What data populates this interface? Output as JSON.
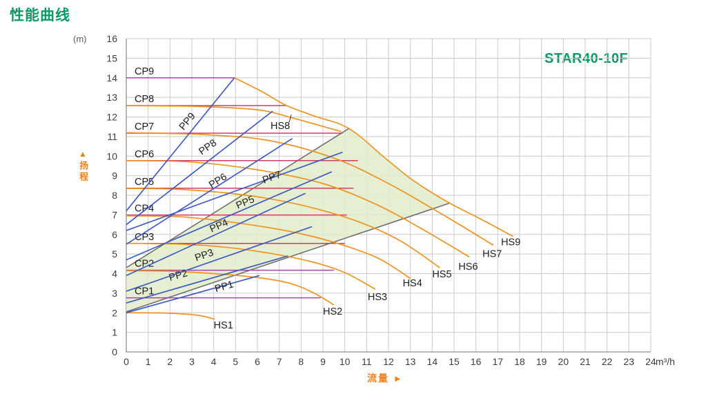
{
  "page": {
    "title": "性能曲线",
    "model": "STAR40-10F"
  },
  "axes": {
    "y_unit": "(m)",
    "ylabel": "扬程",
    "ylabel_arrow": "▲",
    "xlabel": "流量",
    "xlabel_arrow": "►",
    "x_unit": "m³/h"
  },
  "chart_data": {
    "type": "line",
    "title": "性能曲线",
    "model": "STAR40-10F",
    "xlabel": "流量 (m³/h)",
    "ylabel": "扬程 (m)",
    "xlim": [
      0,
      24
    ],
    "ylim": [
      0,
      16
    ],
    "xticks": [
      0,
      1,
      2,
      3,
      4,
      5,
      6,
      7,
      8,
      9,
      10,
      11,
      12,
      13,
      14,
      15,
      16,
      17,
      18,
      19,
      20,
      21,
      22,
      23,
      24
    ],
    "yticks": [
      0,
      1,
      2,
      3,
      4,
      5,
      6,
      7,
      8,
      9,
      10,
      11,
      12,
      13,
      14,
      15,
      16
    ],
    "grid": true,
    "legend": "none",
    "colors": {
      "hs_orange": "#f0921e",
      "pp_blue": "#3d5bc0",
      "cp_crimson": "#d03a66",
      "cp_magenta": "#b13dae",
      "boundary_gray": "#6f6f6f",
      "region_fill": "#e2ecca",
      "grid": "#c9c9c9",
      "axis": "#8f8f8f",
      "tick_text": "#3c3c3c",
      "curve_text": "#1c1c1c",
      "brand_green": "#089a62",
      "axis_orange": "#f0821e"
    },
    "operating_region": {
      "points": [
        [
          0,
          2.05
        ],
        [
          0,
          4.3
        ],
        [
          10.2,
          11.42
        ],
        [
          11.9,
          9.85
        ],
        [
          13.2,
          8.7
        ],
        [
          14.8,
          7.6
        ]
      ]
    },
    "boundary_lines": [
      {
        "name": "lower-limit",
        "from": [
          0,
          2.05
        ],
        "to": [
          14.8,
          7.6
        ]
      },
      {
        "name": "upper-limit",
        "from": [
          0,
          4.3
        ],
        "to": [
          10.2,
          11.42
        ]
      }
    ],
    "cp_lines": [
      {
        "name": "CP1",
        "head_m": 2.76,
        "x_end": 8.9,
        "color": "#b13dae"
      },
      {
        "name": "CP2",
        "head_m": 4.17,
        "x_end": 9.5,
        "color": "#b13dae"
      },
      {
        "name": "CP3",
        "head_m": 5.54,
        "x_end": 10.0,
        "color": "#d03a66"
      },
      {
        "name": "CP4",
        "head_m": 6.99,
        "x_end": 10.1,
        "color": "#d03a66"
      },
      {
        "name": "CP5",
        "head_m": 8.36,
        "x_end": 10.4,
        "color": "#d03a66"
      },
      {
        "name": "CP6",
        "head_m": 9.77,
        "x_end": 10.6,
        "color": "#d03a66"
      },
      {
        "name": "CP7",
        "head_m": 11.17,
        "x_end": 9.9,
        "color": "#d03a66"
      },
      {
        "name": "CP8",
        "head_m": 12.58,
        "x_end": 7.3,
        "color": "#d03a66"
      },
      {
        "name": "CP9",
        "head_m": 14.0,
        "x_end": 4.95,
        "color": "#b13dae"
      }
    ],
    "pp_lines": [
      {
        "name": "PP1",
        "from": [
          0,
          2.0
        ],
        "to": [
          6.1,
          3.9
        ],
        "label": [
          4.1,
          3.05
        ],
        "angle": -16
      },
      {
        "name": "PP2",
        "from": [
          0,
          2.5
        ],
        "to": [
          7.4,
          4.9
        ],
        "label": [
          2.0,
          3.62
        ],
        "angle": -16
      },
      {
        "name": "PP3",
        "from": [
          0,
          3.1
        ],
        "to": [
          8.5,
          6.4
        ],
        "label": [
          3.2,
          4.63
        ],
        "angle": -19
      },
      {
        "name": "PP4",
        "from": [
          0,
          3.9
        ],
        "to": [
          8.2,
          8.1
        ],
        "label": [
          3.9,
          6.1
        ],
        "angle": -24
      },
      {
        "name": "PP5",
        "from": [
          0,
          4.7
        ],
        "to": [
          9.4,
          9.2
        ],
        "label": [
          5.1,
          7.3
        ],
        "angle": -23
      },
      {
        "name": "PP6",
        "from": [
          0,
          5.5
        ],
        "to": [
          7.6,
          10.9
        ],
        "label": [
          3.9,
          8.35
        ],
        "angle": -32
      },
      {
        "name": "PP7",
        "from": [
          0,
          6.2
        ],
        "to": [
          9.9,
          10.2
        ],
        "label": [
          6.3,
          8.6
        ],
        "angle": -20
      },
      {
        "name": "PP8",
        "from": [
          0,
          6.5
        ],
        "to": [
          6.7,
          12.3
        ],
        "label": [
          3.45,
          10.05
        ],
        "angle": -35
      },
      {
        "name": "PP9",
        "from": [
          0,
          7.2
        ],
        "to": [
          4.95,
          14.0
        ],
        "label": [
          2.62,
          11.3
        ],
        "angle": -50
      }
    ],
    "hs_curves": [
      {
        "name": "HS1",
        "label": [
          4.0,
          1.2
        ],
        "points": [
          [
            0,
            2.0
          ],
          [
            1.5,
            1.99
          ],
          [
            2.6,
            1.94
          ],
          [
            3.4,
            1.85
          ],
          [
            4.05,
            1.67
          ]
        ]
      },
      {
        "name": "HS2",
        "label": [
          9.0,
          1.9
        ],
        "points": [
          [
            0,
            4.15
          ],
          [
            2,
            4.12
          ],
          [
            4,
            4.0
          ],
          [
            6,
            3.8
          ],
          [
            7.5,
            3.5
          ],
          [
            8.6,
            3.0
          ],
          [
            9.5,
            2.4
          ]
        ]
      },
      {
        "name": "HS3",
        "label": [
          11.05,
          2.65
        ],
        "points": [
          [
            0,
            5.55
          ],
          [
            2.5,
            5.5
          ],
          [
            4.5,
            5.35
          ],
          [
            6.5,
            5.05
          ],
          [
            8.5,
            4.6
          ],
          [
            10,
            4.05
          ],
          [
            11.4,
            3.2
          ]
        ]
      },
      {
        "name": "HS4",
        "label": [
          12.65,
          3.35
        ],
        "points": [
          [
            0,
            6.95
          ],
          [
            2.5,
            6.9
          ],
          [
            5,
            6.6
          ],
          [
            7.5,
            6.15
          ],
          [
            9.5,
            5.6
          ],
          [
            11.5,
            4.8
          ],
          [
            13.0,
            3.75
          ]
        ]
      },
      {
        "name": "HS5",
        "label": [
          14.0,
          3.8
        ],
        "points": [
          [
            0,
            8.35
          ],
          [
            2.5,
            8.3
          ],
          [
            5.5,
            8.0
          ],
          [
            8,
            7.5
          ],
          [
            10.5,
            6.7
          ],
          [
            12.5,
            5.7
          ],
          [
            14.35,
            4.3
          ]
        ]
      },
      {
        "name": "HS6",
        "label": [
          15.2,
          4.2
        ],
        "points": [
          [
            0,
            9.77
          ],
          [
            3,
            9.7
          ],
          [
            6,
            9.3
          ],
          [
            9,
            8.6
          ],
          [
            11.5,
            7.5
          ],
          [
            13.5,
            6.3
          ],
          [
            15.7,
            4.85
          ]
        ]
      },
      {
        "name": "HS7",
        "label": [
          16.3,
          4.85
        ],
        "points": [
          [
            0,
            11.2
          ],
          [
            3.5,
            11.1
          ],
          [
            6.5,
            10.8
          ],
          [
            9.5,
            9.9
          ],
          [
            12,
            8.6
          ],
          [
            14.5,
            7.0
          ],
          [
            16.8,
            5.45
          ]
        ]
      },
      {
        "name": "HS8",
        "label": [
          6.6,
          11.38
        ],
        "leader": [
          [
            7.45,
            11.72
          ],
          [
            7.55,
            12.12
          ]
        ],
        "points": [
          [
            0,
            12.58
          ],
          [
            3.5,
            12.53
          ],
          [
            6.1,
            12.35
          ],
          [
            7.6,
            11.95
          ],
          [
            8.9,
            11.55
          ],
          [
            9.85,
            11.25
          ]
        ]
      },
      {
        "name": "HS9",
        "label": [
          17.15,
          5.45
        ],
        "points": [
          [
            4.95,
            14.0
          ],
          [
            6.2,
            13.3
          ],
          [
            7.3,
            12.6
          ],
          [
            8.6,
            12.05
          ],
          [
            10.2,
            11.4
          ],
          [
            11.9,
            9.85
          ],
          [
            13.2,
            8.7
          ],
          [
            14.8,
            7.6
          ],
          [
            16.2,
            6.8
          ],
          [
            17.7,
            5.9
          ]
        ]
      }
    ]
  }
}
